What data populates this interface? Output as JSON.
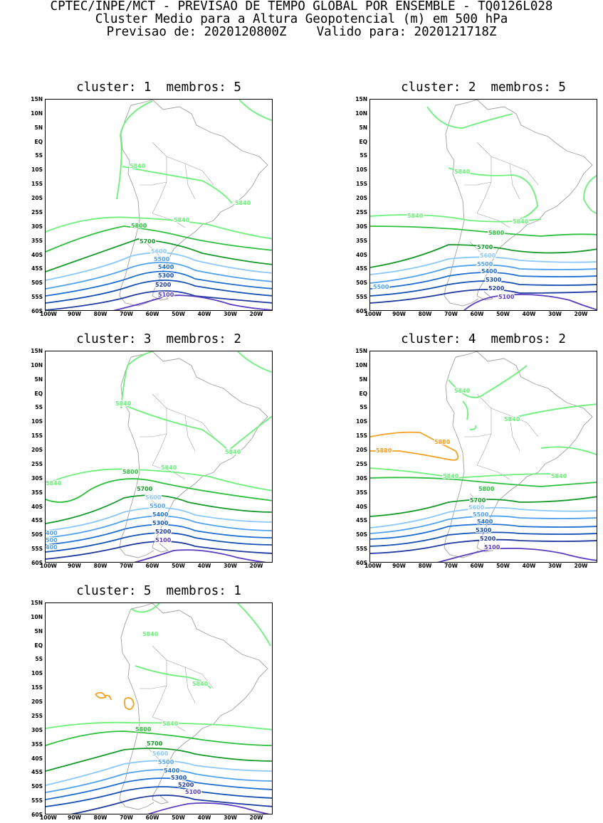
{
  "header": {
    "line1": "CPTEC/INPE/MCT - PREVISAO DE TEMPO GLOBAL POR ENSEMBLE - TQ0126L028",
    "line2": "Cluster Medio para a Altura Geopotencial (m) em 500 hPa",
    "line3": "Previsao de: 2020120800Z    Valido para: 2020121718Z"
  },
  "axes": {
    "lat_labels": [
      "15N",
      "10N",
      "5N",
      "EQ",
      "5S",
      "10S",
      "15S",
      "20S",
      "25S",
      "30S",
      "35S",
      "40S",
      "45S",
      "50S",
      "55S",
      "60S"
    ],
    "lon_labels": [
      "100W",
      "90W",
      "80W",
      "70W",
      "60W",
      "50W",
      "40W",
      "30W",
      "20W"
    ]
  },
  "colors": {
    "5880": "#f2a01e",
    "5840": "#6cf07a",
    "5800": "#2cc03c",
    "5700": "#149a28",
    "5600": "#8cc8f8",
    "5500": "#50a2ee",
    "5400": "#1e6fd2",
    "5300": "#1450b4",
    "5200": "#1e3aa0",
    "5100": "#5a3cc0",
    "coast": "#a0a0a0"
  },
  "panels": [
    {
      "title": "cluster: 1  membros: 5",
      "labels": {
        "5840a": "5840",
        "5840b": "5840",
        "5840c": "5840",
        "5800": "5800",
        "5700": "5700",
        "5600": "5600",
        "5500": "5500",
        "5400": "5400",
        "5300": "5300",
        "5200": "5200",
        "5100": "5100"
      }
    },
    {
      "title": "cluster: 2  membros: 5",
      "labels": {
        "5840a": "5840",
        "5840b": "5840",
        "5840c": "5840",
        "5800": "5800",
        "5700": "5700",
        "5600": "5600",
        "5500": "5500",
        "5500b": "5500",
        "5400": "5400",
        "5300": "5300",
        "5200": "5200",
        "5100": "5100"
      }
    },
    {
      "title": "cluster: 3  membros: 2",
      "labels": {
        "5840a": "5840",
        "5840b": "5840",
        "5840c": "5840",
        "5840d": "5840",
        "5800": "5800",
        "5700": "5700",
        "5600": "5600",
        "5500": "5500",
        "5400": "5400",
        "5300": "5300",
        "5200": "5200",
        "5100": "5100",
        "e1": "400",
        "e2": "500",
        "e3": "400"
      }
    },
    {
      "title": "cluster: 4  membros: 2",
      "labels": {
        "5880a": "5880",
        "5880b": "5880",
        "5840a": "5840",
        "5840b": "5840",
        "5840c": "5840",
        "5840d": "5840",
        "5800": "5800",
        "5700": "5700",
        "5600": "5600",
        "5500": "5500",
        "5400": "5400",
        "5300": "5300",
        "5200": "5200",
        "5100": "5100"
      }
    },
    {
      "title": "cluster: 5  membros: 1",
      "labels": {
        "5840a": "5840",
        "5840b": "5840",
        "5840c": "5840",
        "5800": "5800",
        "5700": "5700",
        "5600": "5600",
        "5500": "5500",
        "5400": "5400",
        "5300": "5300",
        "5200": "5200",
        "5100": "5100"
      }
    }
  ]
}
